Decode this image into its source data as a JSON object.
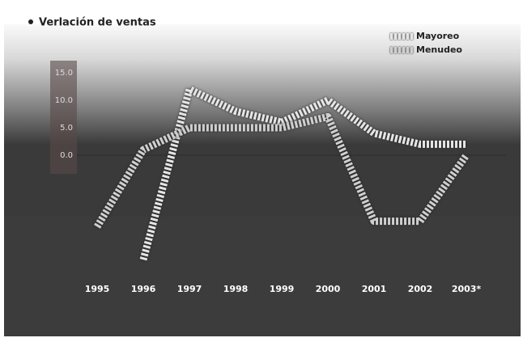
{
  "chart_data": {
    "type": "line",
    "title": "Verlación de ventas",
    "categories": [
      "1995",
      "1996",
      "1997",
      "1998",
      "1999",
      "2000",
      "2001",
      "2002",
      "2003*"
    ],
    "series": [
      {
        "name": "Mayoreo",
        "color": "#e6e6e6",
        "values": [
          null,
          -19,
          12,
          8,
          6,
          10,
          4,
          2,
          2
        ]
      },
      {
        "name": "Menudeo",
        "color": "#cfcfcf",
        "values": [
          -13,
          1,
          5,
          5,
          5,
          7,
          -12,
          -12,
          0
        ]
      }
    ],
    "ylim": [
      -20,
      18
    ],
    "yticks": [
      {
        "value": 0,
        "label": "0.0"
      },
      {
        "value": 5,
        "label": "5.0"
      },
      {
        "value": 10,
        "label": "10.0"
      },
      {
        "value": 15,
        "label": "15.0"
      }
    ],
    "legend": "top-right"
  }
}
